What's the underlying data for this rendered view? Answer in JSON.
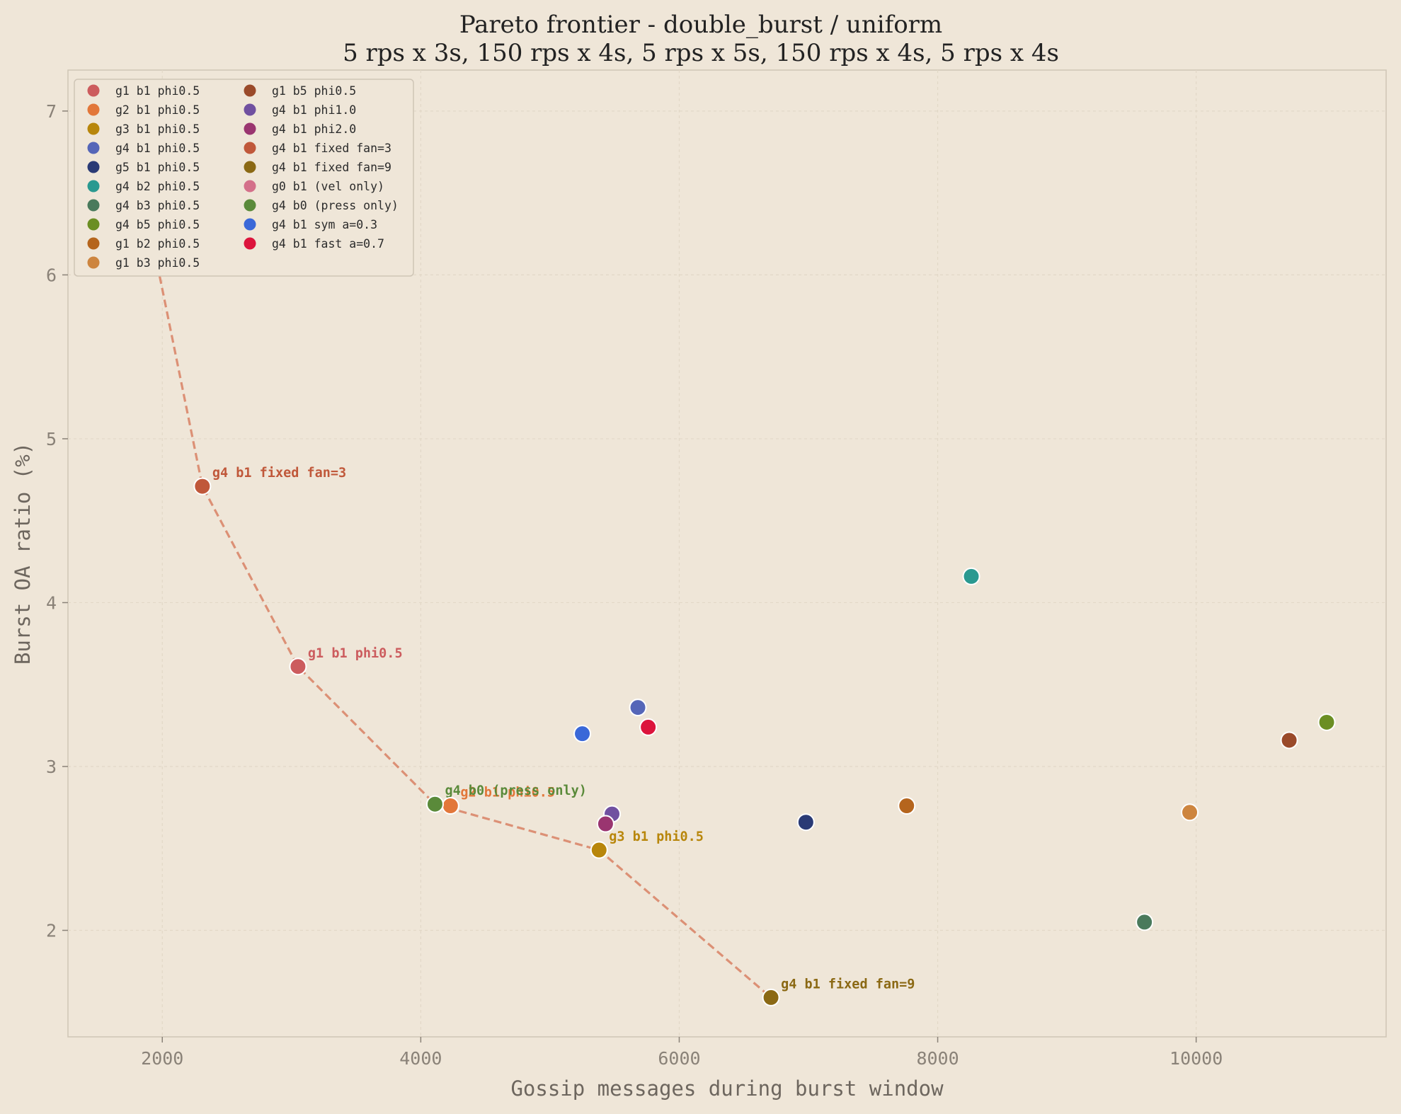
{
  "chart_data": {
    "type": "scatter",
    "title": "Pareto frontier - double_burst / uniform",
    "subtitle": "5 rps x 3s, 150 rps x 4s, 5 rps x 5s, 150 rps x 4s, 5 rps x 4s",
    "xlabel": "Gossip messages during burst window",
    "ylabel": "Burst OA ratio (%)",
    "xlim": [
      1270,
      11470
    ],
    "ylim": [
      1.35,
      7.25
    ],
    "x_ticks": [
      2000,
      4000,
      6000,
      8000,
      10000
    ],
    "y_ticks": [
      2,
      3,
      4,
      5,
      6,
      7
    ],
    "grid": true,
    "legend_position": "top-left",
    "series": [
      {
        "name": "g1 b1 phi0.5",
        "color": "#cc5c5e",
        "x": 3050,
        "y": 3.61,
        "annotate": true
      },
      {
        "name": "g2 b1 phi0.5",
        "color": "#e2773a",
        "x": 4230,
        "y": 2.76,
        "annotate": true
      },
      {
        "name": "g3 b1 phi0.5",
        "color": "#b8860b",
        "x": 5380,
        "y": 2.49,
        "annotate": true
      },
      {
        "name": "g4 b1 phi0.5",
        "color": "#5566b8",
        "x": 5680,
        "y": 3.36,
        "annotate": false
      },
      {
        "name": "g5 b1 phi0.5",
        "color": "#2a3a75",
        "x": 6980,
        "y": 2.66,
        "annotate": false
      },
      {
        "name": "g4 b2 phi0.5",
        "color": "#2a9990",
        "x": 8260,
        "y": 4.16,
        "annotate": false
      },
      {
        "name": "g4 b3 phi0.5",
        "color": "#4a7a5c",
        "x": 9600,
        "y": 2.05,
        "annotate": false
      },
      {
        "name": "g4 b5 phi0.5",
        "color": "#6b8e23",
        "x": 11010,
        "y": 3.27,
        "annotate": false
      },
      {
        "name": "g1 b2 phi0.5",
        "color": "#b5651d",
        "x": 7760,
        "y": 2.76,
        "annotate": false
      },
      {
        "name": "g1 b3 phi0.5",
        "color": "#cd853f",
        "x": 9950,
        "y": 2.72,
        "annotate": false
      },
      {
        "name": "g1 b5 phi0.5",
        "color": "#9a4a2a",
        "x": 10720,
        "y": 3.16,
        "annotate": false
      },
      {
        "name": "g4 b1 phi1.0",
        "color": "#7050a0",
        "x": 5480,
        "y": 2.71,
        "annotate": false
      },
      {
        "name": "g4 b1 phi2.0",
        "color": "#9a3570",
        "x": 5430,
        "y": 2.65,
        "annotate": false
      },
      {
        "name": "g4 b1 fixed fan=3",
        "color": "#c0583a",
        "x": 2310,
        "y": 4.71,
        "annotate": true
      },
      {
        "name": "g4 b1 fixed fan=9",
        "color": "#8b6914",
        "x": 6710,
        "y": 1.59,
        "annotate": true
      },
      {
        "name": "g0 b1 (vel only)",
        "color": "#d4708a",
        "x": 1720,
        "y": 7.0,
        "annotate": true
      },
      {
        "name": "g4 b0 (press only)",
        "color": "#5a8a3a",
        "x": 4110,
        "y": 2.77,
        "annotate": true
      },
      {
        "name": "g4 b1 sym a=0.3",
        "color": "#3a68d8",
        "x": 5250,
        "y": 3.2,
        "annotate": false
      },
      {
        "name": "g4 b1 fast a=0.7",
        "color": "#dc143c",
        "x": 5760,
        "y": 3.24,
        "annotate": false
      }
    ],
    "pareto_frontier": {
      "color": "#d9866a",
      "x": [
        1720,
        2310,
        3050,
        4110,
        5380,
        6710
      ],
      "y": [
        7.0,
        4.71,
        3.61,
        2.77,
        2.49,
        1.59
      ]
    }
  }
}
